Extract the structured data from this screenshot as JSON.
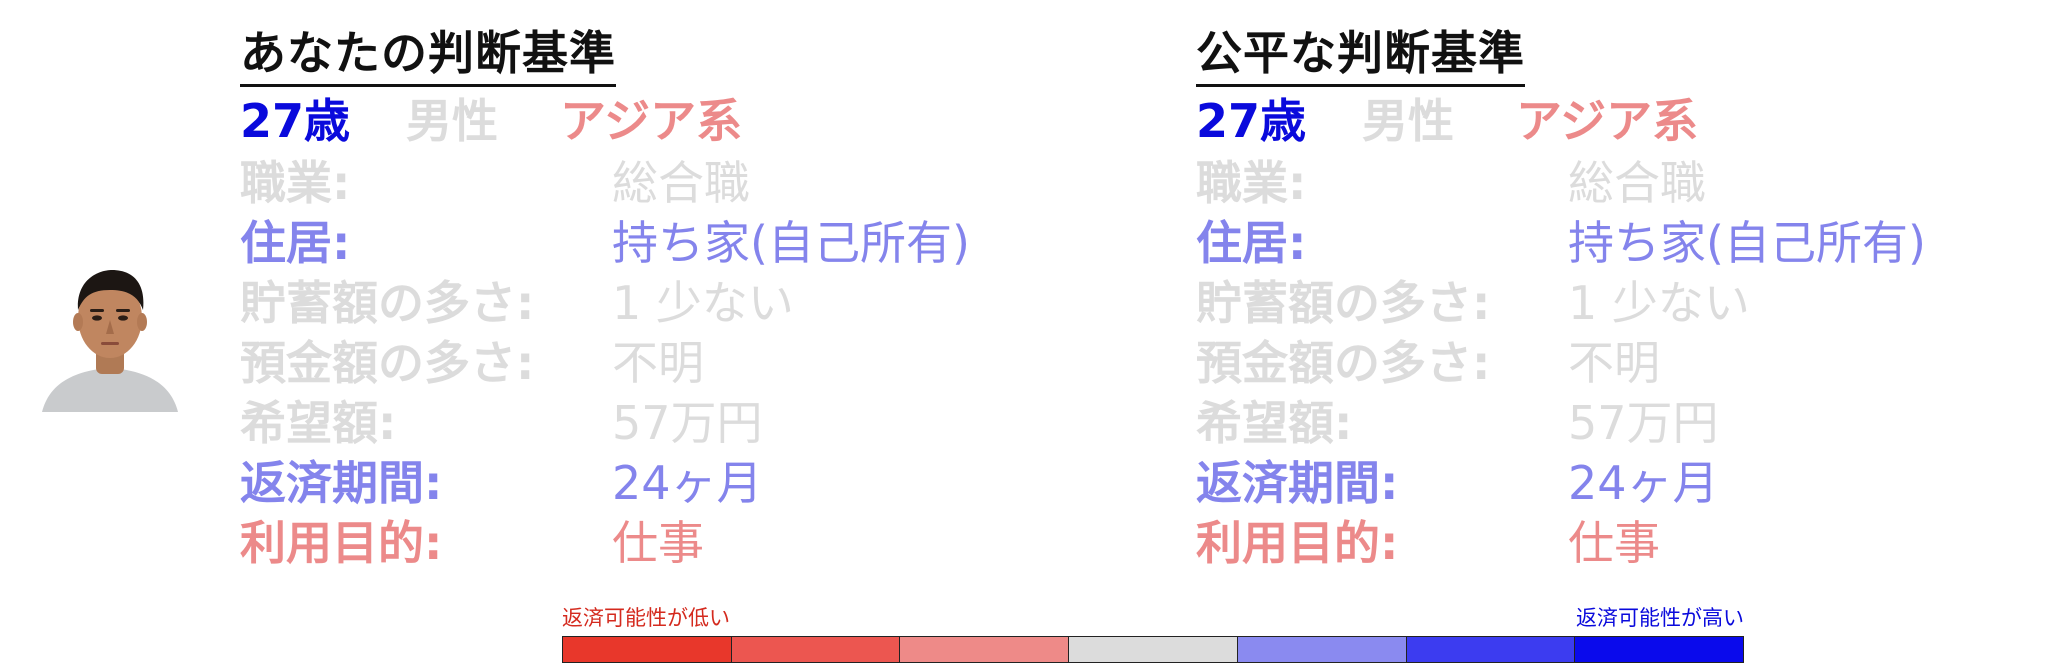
{
  "colors": {
    "strong_blue": "#0a0adc",
    "muted_blue": "#8484ec",
    "muted_red": "#ec8a8a",
    "faded_gray": "#dcdcdc",
    "legend_low_text": "#d42a1e",
    "legend_high_text": "#0a0adc"
  },
  "panels": [
    {
      "title": "あなたの判断基準",
      "demographics": {
        "age": "27歳",
        "gender": "男性",
        "ethnicity": "アジア系"
      },
      "attributes": [
        {
          "label": "職業:",
          "value": "総合職",
          "tone": "gray"
        },
        {
          "label": "住居:",
          "value": "持ち家(自己所有)",
          "tone": "blue"
        },
        {
          "label": "貯蓄額の多さ:",
          "value": "1 少ない",
          "tone": "gray"
        },
        {
          "label": "預金額の多さ:",
          "value": "不明",
          "tone": "gray"
        },
        {
          "label": "希望額:",
          "value": "57万円",
          "tone": "gray"
        },
        {
          "label": "返済期間:",
          "value": "24ヶ月",
          "tone": "blue"
        },
        {
          "label": "利用目的:",
          "value": "仕事",
          "tone": "red"
        }
      ]
    },
    {
      "title": "公平な判断基準",
      "demographics": {
        "age": "27歳",
        "gender": "男性",
        "ethnicity": "アジア系"
      },
      "attributes": [
        {
          "label": "職業:",
          "value": "総合職",
          "tone": "gray"
        },
        {
          "label": "住居:",
          "value": "持ち家(自己所有)",
          "tone": "blue"
        },
        {
          "label": "貯蓄額の多さ:",
          "value": "1 少ない",
          "tone": "gray"
        },
        {
          "label": "預金額の多さ:",
          "value": "不明",
          "tone": "gray"
        },
        {
          "label": "希望額:",
          "value": "57万円",
          "tone": "gray"
        },
        {
          "label": "返済期間:",
          "value": "24ヶ月",
          "tone": "blue"
        },
        {
          "label": "利用目的:",
          "value": "仕事",
          "tone": "red"
        }
      ]
    }
  ],
  "legend": {
    "low_label": "返済可能性が低い",
    "high_label": "返済可能性が高い",
    "scale_colors": [
      "#e8372b",
      "#ec5650",
      "#ee8a88",
      "#dcdcdc",
      "#8a8af0",
      "#3c3cf0",
      "#0a0aec"
    ]
  }
}
